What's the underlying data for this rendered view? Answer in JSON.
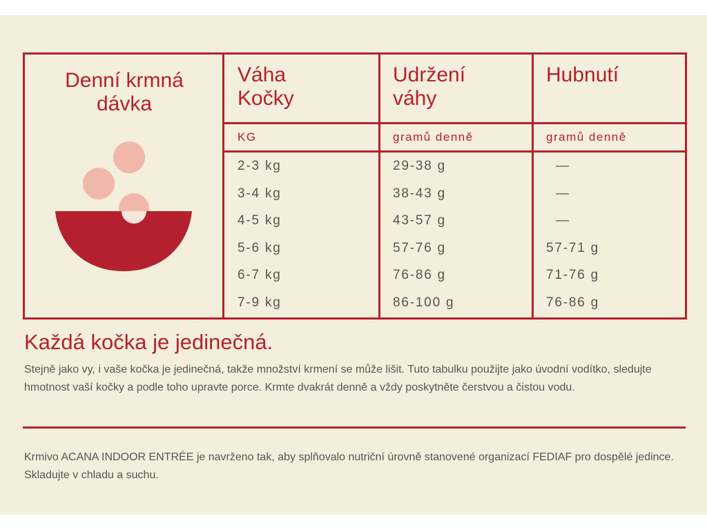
{
  "table": {
    "title": "Denní krmná dávka",
    "headers": [
      "Váha Kočky",
      "Udržení váhy",
      "Hubnutí"
    ],
    "units": [
      "KG",
      "gramů denně",
      "gramů denně"
    ],
    "rows": [
      [
        "2-3 kg",
        "29-38 g",
        "—"
      ],
      [
        "3-4 kg",
        "38-43 g",
        "—"
      ],
      [
        "4-5 kg",
        "43-57 g",
        "—"
      ],
      [
        "5-6 kg",
        "57-76 g",
        "57-71 g"
      ],
      [
        "6-7 kg",
        "76-86 g",
        "71-76 g"
      ],
      [
        "7-9 kg",
        "86-100 g",
        "76-86 g"
      ]
    ]
  },
  "note": {
    "heading": "Každá kočka je jedinečná.",
    "text": "Stejně jako vy, i vaše kočka je jedinečná, takže množství krmení se může lišit. Tuto tabulku použijte jako úvodní vodítko, sledujte hmotnost vaší kočky a podle toho upravte porce. Krmte dvakrát denně a vždy poskytněte čerstvou a čistou vodu."
  },
  "footer": {
    "text": "Krmivo ACANA INDOOR ENTRÉE je navrženo tak, aby splňovalo nutriční úrovně stanovené organizací FEDIAF pro dospělé jedince. Skladujte v chladu a suchu."
  }
}
